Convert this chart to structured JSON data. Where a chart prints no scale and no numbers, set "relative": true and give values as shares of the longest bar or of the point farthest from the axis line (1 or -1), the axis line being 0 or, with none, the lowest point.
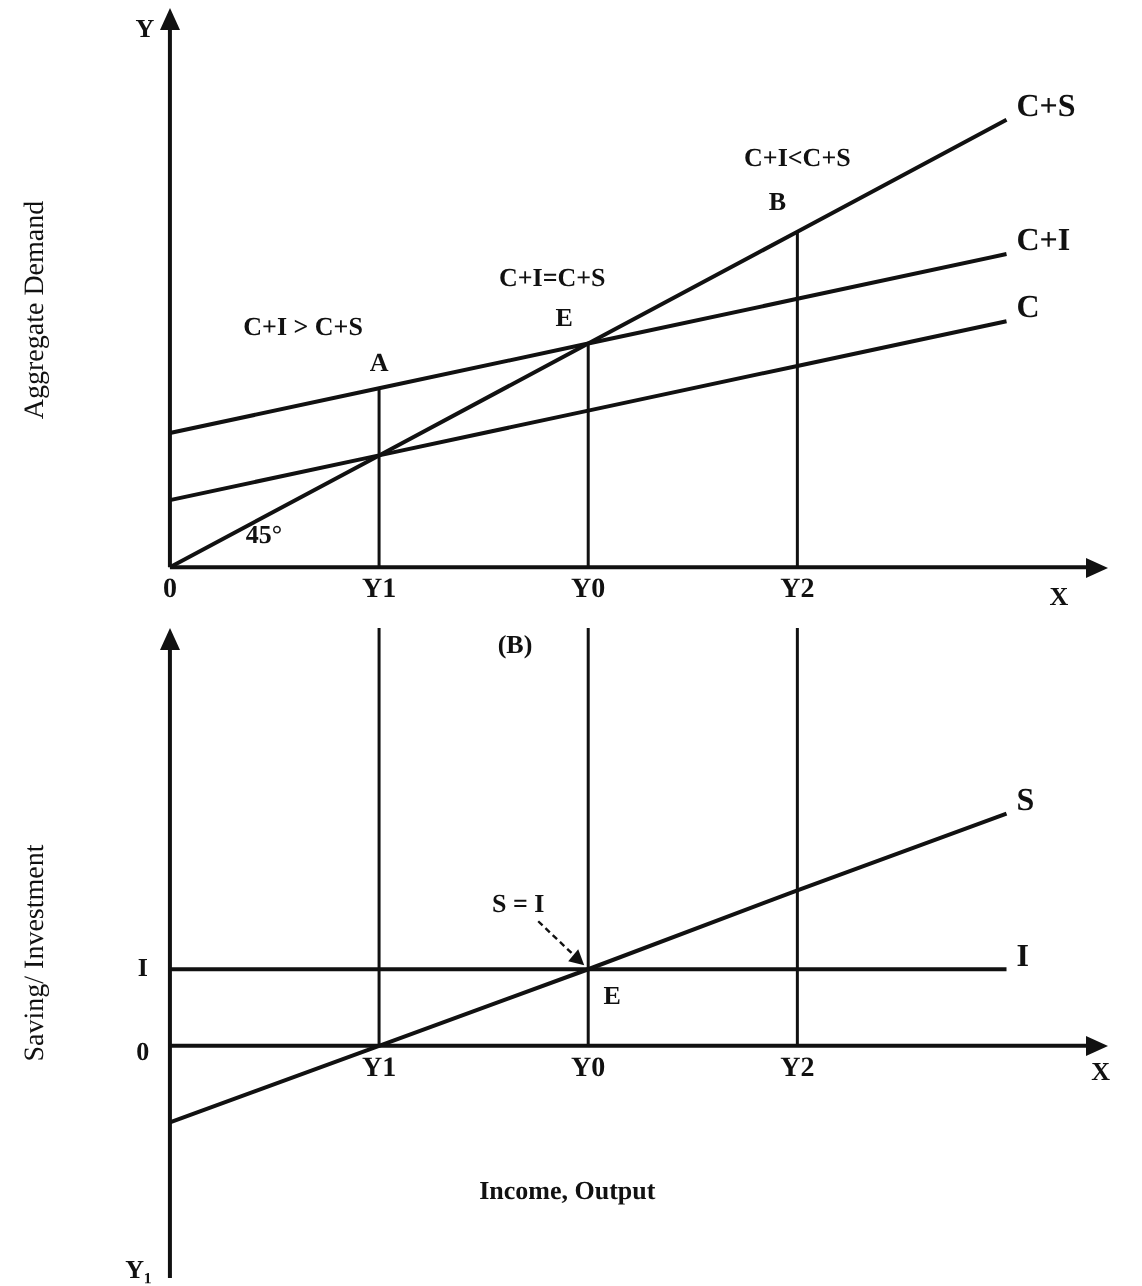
{
  "chart_data": [
    {
      "type": "line",
      "relative": true,
      "ylabel": "Aggregate Demand",
      "categories": [
        "0",
        "Y1",
        "Y0",
        "Y2",
        null
      ],
      "series": [
        {
          "name": "C+S",
          "color": "#111111",
          "values": [
            0,
            0.25,
            0.5,
            0.75,
            1
          ]
        },
        {
          "name": "C+I",
          "color": "#111111",
          "values": [
            0.3,
            0.4,
            0.5,
            0.6,
            0.7
          ]
        },
        {
          "name": "C",
          "color": "#111111",
          "values": [
            0.15,
            0.25,
            0.35,
            0.45,
            0.55
          ]
        }
      ],
      "ref_lines": [
        {
          "axis": "x",
          "value": "Y1"
        },
        {
          "axis": "x",
          "value": "Y0"
        },
        {
          "axis": "x",
          "value": "Y2"
        }
      ],
      "annotations": [
        {
          "text": "A",
          "x": "Y1",
          "y": 0.4
        },
        {
          "text": "C+I > C+S",
          "x": "Y1",
          "y": 0.4
        },
        {
          "text": "E",
          "x": "Y0",
          "y": 0.5
        },
        {
          "text": "C+I=C+S",
          "x": "Y0",
          "y": 0.5
        },
        {
          "text": "B",
          "x": "Y2",
          "y": 0.75
        },
        {
          "text": "C+I<C+S",
          "x": "Y2",
          "y": 0.75
        },
        "45°",
        "Y",
        "X"
      ]
    },
    {
      "type": "line",
      "relative": true,
      "ylabel": "Saving/ Investment",
      "xlabel": "Income, Output",
      "categories": [
        null,
        "Y1",
        "Y0",
        "Y2",
        null
      ],
      "series": [
        {
          "name": "S",
          "color": "#111111",
          "values": [
            -0.33,
            0,
            0.33,
            0.67,
            1
          ]
        },
        {
          "name": "I",
          "color": "#111111",
          "values": [
            0.33,
            0.33,
            0.33,
            0.33,
            0.33
          ]
        }
      ],
      "ref_lines": [
        {
          "axis": "x",
          "value": "Y1"
        },
        {
          "axis": "x",
          "value": "Y0"
        },
        {
          "axis": "x",
          "value": "Y2"
        }
      ],
      "annotations": [
        {
          "text": "S = I",
          "x": "Y0",
          "y": 0.33
        },
        {
          "text": "E",
          "x": "Y0",
          "y": 0.33
        },
        "(B)",
        "I",
        "0",
        "X",
        "Y₁"
      ]
    }
  ]
}
